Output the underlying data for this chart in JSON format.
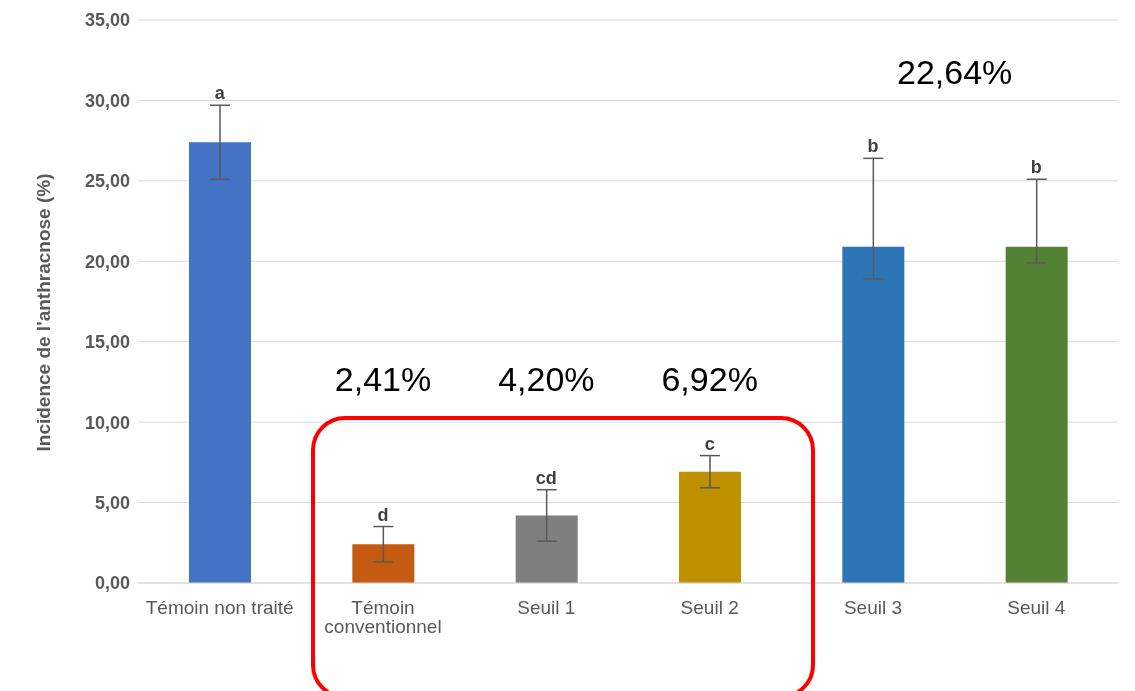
{
  "chart_data": {
    "type": "bar",
    "ylabel": "Incidence de l'anthracnose (%)",
    "categories": [
      "Témoin non traité",
      "Témoin conventionnel",
      "Seuil 1",
      "Seuil 2",
      "Seuil 3",
      "Seuil 4"
    ],
    "values": [
      27.4,
      2.41,
      4.2,
      6.92,
      20.9,
      20.9
    ],
    "colors": [
      "#4472c4",
      "#c55a11",
      "#7f7f7f",
      "#bf9000",
      "#2e75b6",
      "#548235"
    ],
    "errors": [
      2.3,
      1.1,
      1.6,
      1.0,
      [
        18.9,
        26.4
      ],
      [
        19.9,
        25.1
      ]
    ],
    "ylim": [
      0,
      35
    ],
    "yticks": [
      {
        "value": 0,
        "label": "0,00"
      },
      {
        "value": 5,
        "label": "5,00"
      },
      {
        "value": 10,
        "label": "10,00"
      },
      {
        "value": 15,
        "label": "15,00"
      },
      {
        "value": 20,
        "label": "20,00"
      },
      {
        "value": 25,
        "label": "25,00"
      },
      {
        "value": 30,
        "label": "30,00"
      },
      {
        "value": 35,
        "label": "35,00"
      }
    ],
    "grid": "y",
    "legend": false,
    "annotations": [
      {
        "text": "a",
        "x": "Témoin non traité",
        "y": 29.7
      },
      {
        "text": "d",
        "x": "Témoin conventionnel",
        "y": 3.5
      },
      {
        "text": "cd",
        "x": "Seuil 1",
        "y": 5.8
      },
      {
        "text": "c",
        "x": "Seuil 2",
        "y": 7.9
      },
      {
        "text": "b",
        "x": "Seuil 3",
        "y": 26.4
      },
      {
        "text": "b",
        "x": "Seuil 4",
        "y": 25.1
      },
      "2,41%",
      "4,20%",
      "6,92%",
      "22,64%"
    ]
  }
}
